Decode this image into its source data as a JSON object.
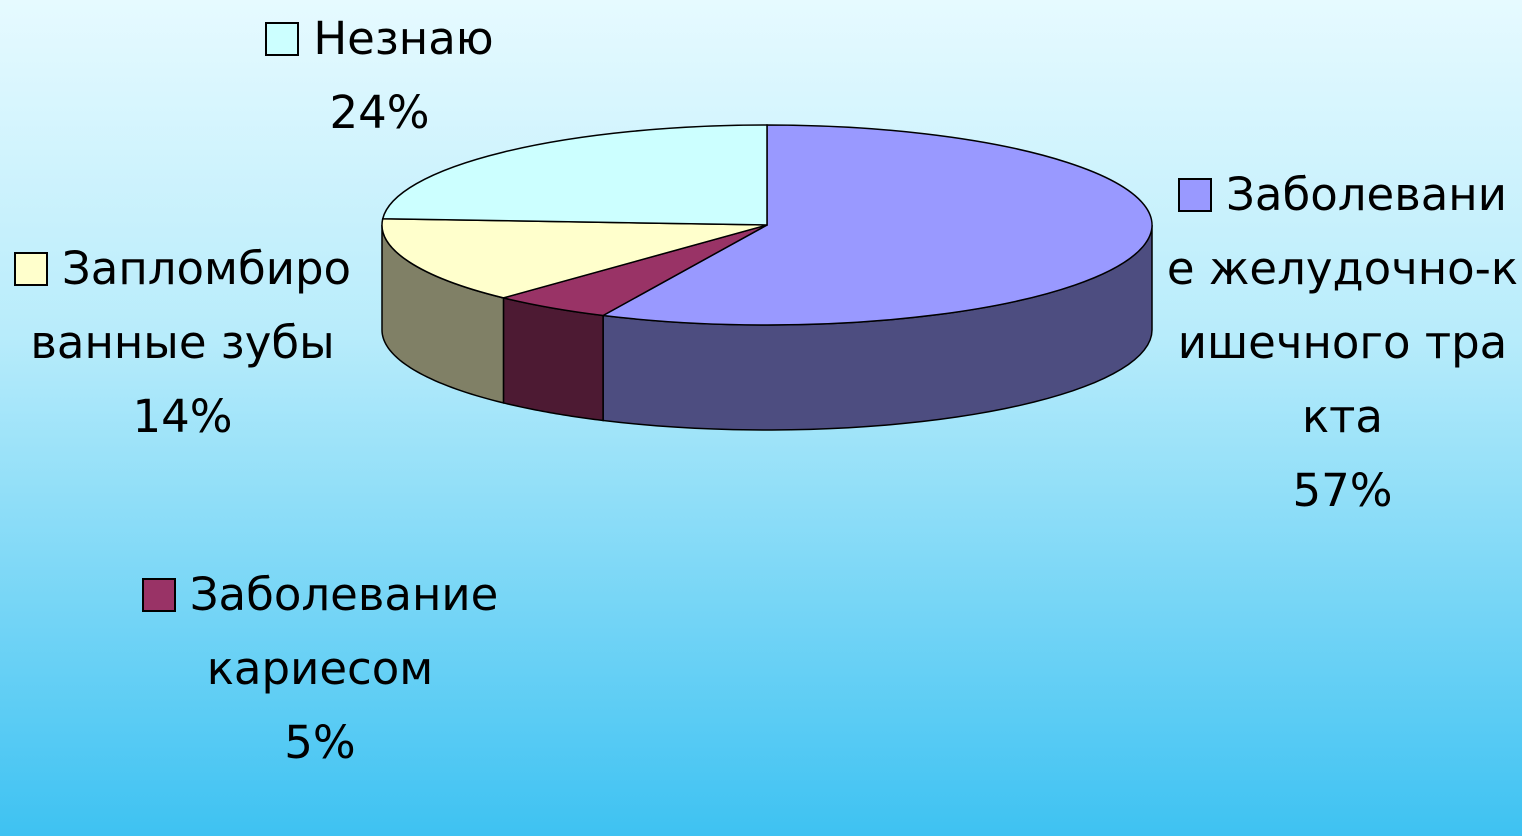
{
  "chart_data": {
    "type": "pie3d",
    "categories": [
      "Заболевание желудочно-кишечного тракта",
      "Заболевание кариесом",
      "Запломбированные зубы",
      "Незнаю"
    ],
    "values": [
      57,
      5,
      14,
      24
    ],
    "value_labels": [
      "57%",
      "5%",
      "14%",
      "24%"
    ],
    "colors": [
      "#9999ff",
      "#993366",
      "#ffffcc",
      "#ccffff"
    ]
  }
}
